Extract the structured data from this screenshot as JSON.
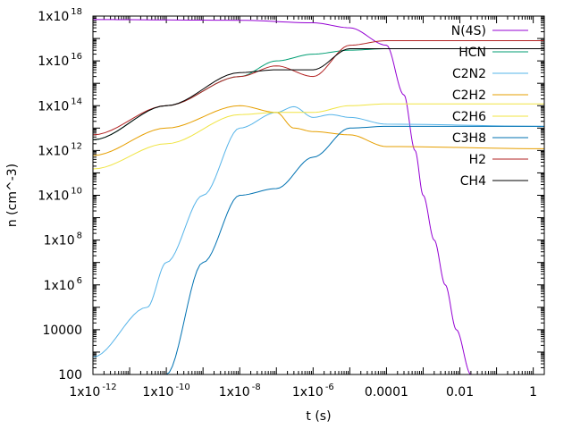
{
  "chart_data": {
    "type": "line",
    "title": "",
    "xlabel": "t (s)",
    "ylabel": "n (cm^-3)",
    "xscale": "log",
    "yscale": "log",
    "xlim": [
      1e-12,
      2
    ],
    "ylim": [
      100,
      1e+18
    ],
    "grid": false,
    "legend_position": "top-right",
    "x_ticks": [
      {
        "value": 1e-12,
        "base": "1x10",
        "exp": "-12"
      },
      {
        "value": 1e-10,
        "base": "1x10",
        "exp": "-10"
      },
      {
        "value": 1e-08,
        "base": "1x10",
        "exp": "-8"
      },
      {
        "value": 1e-06,
        "base": "1x10",
        "exp": "-6"
      },
      {
        "value": 0.0001,
        "base": "0.0001",
        "exp": ""
      },
      {
        "value": 0.01,
        "base": "0.01",
        "exp": ""
      },
      {
        "value": 1,
        "base": "1",
        "exp": ""
      }
    ],
    "y_ticks": [
      {
        "value": 100,
        "base": "100",
        "exp": ""
      },
      {
        "value": 10000,
        "base": "10000",
        "exp": ""
      },
      {
        "value": 1000000.0,
        "base": "1x10",
        "exp": "6"
      },
      {
        "value": 100000000.0,
        "base": "1x10",
        "exp": "8"
      },
      {
        "value": 10000000000.0,
        "base": "1x10",
        "exp": "10"
      },
      {
        "value": 1000000000000.0,
        "base": "1x10",
        "exp": "12"
      },
      {
        "value": 100000000000000.0,
        "base": "1x10",
        "exp": "14"
      },
      {
        "value": 1e+16,
        "base": "1x10",
        "exp": "16"
      },
      {
        "value": 1e+18,
        "base": "1x10",
        "exp": "18"
      }
    ],
    "series": [
      {
        "name": "N(4S)",
        "color": "#9400d3",
        "points": [
          [
            1e-12,
            7e+17
          ],
          [
            1e-08,
            6.5e+17
          ],
          [
            1e-06,
            5e+17
          ],
          [
            1e-05,
            3e+17
          ],
          [
            0.0001,
            5e+16
          ],
          [
            0.0003,
            300000000000000.0
          ],
          [
            0.0006,
            1000000000000.0
          ],
          [
            0.001,
            10000000000.0
          ],
          [
            0.002,
            100000000.0
          ],
          [
            0.004,
            1000000.0
          ],
          [
            0.008,
            10000.0
          ],
          [
            0.02,
            100
          ],
          [
            0.03,
            10
          ]
        ]
      },
      {
        "name": "HCN",
        "color": "#009e73",
        "points": [
          [
            1e-12,
            3000000000000.0
          ],
          [
            1e-10,
            100000000000000.0
          ],
          [
            1e-08,
            2000000000000000.0
          ],
          [
            1e-07,
            1e+16
          ],
          [
            1e-06,
            2e+16
          ],
          [
            1e-05,
            3e+16
          ],
          [
            0.0001,
            3.5e+16
          ],
          [
            2,
            3.5e+16
          ]
        ]
      },
      {
        "name": "C2N2",
        "color": "#56b4e9",
        "points": [
          [
            1e-12,
            600
          ],
          [
            3e-11,
            100000.0
          ],
          [
            1e-10,
            10000000.0
          ],
          [
            1e-09,
            10000000000.0
          ],
          [
            1e-08,
            10000000000000.0
          ],
          [
            1e-07,
            50000000000000.0
          ],
          [
            3e-07,
            90000000000000.0
          ],
          [
            1e-06,
            30000000000000.0
          ],
          [
            3e-06,
            40000000000000.0
          ],
          [
            1e-05,
            30000000000000.0
          ],
          [
            0.0001,
            15000000000000.0
          ],
          [
            2,
            12000000000000.0
          ]
        ]
      },
      {
        "name": "C2H2",
        "color": "#e69f00",
        "points": [
          [
            1e-12,
            600000000000.0
          ],
          [
            1e-10,
            10000000000000.0
          ],
          [
            1e-08,
            100000000000000.0
          ],
          [
            1e-07,
            50000000000000.0
          ],
          [
            3e-07,
            10000000000000.0
          ],
          [
            1e-06,
            7000000000000.0
          ],
          [
            1e-05,
            5000000000000.0
          ],
          [
            0.0001,
            1500000000000.0
          ],
          [
            2,
            1200000000000.0
          ]
        ]
      },
      {
        "name": "C2H6",
        "color": "#f0e442",
        "points": [
          [
            1e-12,
            150000000000.0
          ],
          [
            1e-10,
            2000000000000.0
          ],
          [
            1e-08,
            40000000000000.0
          ],
          [
            1e-07,
            50000000000000.0
          ],
          [
            1e-06,
            50000000000000.0
          ],
          [
            1e-05,
            100000000000000.0
          ],
          [
            0.0001,
            120000000000000.0
          ],
          [
            2,
            120000000000000.0
          ]
        ]
      },
      {
        "name": "C3H8",
        "color": "#0072b2",
        "points": [
          [
            1e-12,
            2
          ],
          [
            1e-10,
            100
          ],
          [
            1e-09,
            10000000.0
          ],
          [
            1e-08,
            10000000000.0
          ],
          [
            1e-07,
            20000000000.0
          ],
          [
            1e-06,
            500000000000.0
          ],
          [
            1e-05,
            10000000000000.0
          ],
          [
            0.0001,
            12000000000000.0
          ],
          [
            2,
            12000000000000.0
          ]
        ]
      },
      {
        "name": "H2",
        "color": "#b22222",
        "points": [
          [
            1e-12,
            5000000000000.0
          ],
          [
            1e-10,
            100000000000000.0
          ],
          [
            1e-08,
            2000000000000000.0
          ],
          [
            1e-07,
            6000000000000000.0
          ],
          [
            1e-06,
            2000000000000000.0
          ],
          [
            1e-05,
            5e+16
          ],
          [
            0.0001,
            8e+16
          ],
          [
            2,
            8e+16
          ]
        ]
      },
      {
        "name": "CH4",
        "color": "#000000",
        "points": [
          [
            1e-12,
            3000000000000.0
          ],
          [
            1e-10,
            100000000000000.0
          ],
          [
            1e-08,
            3000000000000000.0
          ],
          [
            1e-07,
            4000000000000000.0
          ],
          [
            1e-06,
            4000000000000000.0
          ],
          [
            1e-05,
            3.5e+16
          ],
          [
            0.0001,
            3.5e+16
          ],
          [
            2,
            3.5e+16
          ]
        ]
      }
    ]
  }
}
